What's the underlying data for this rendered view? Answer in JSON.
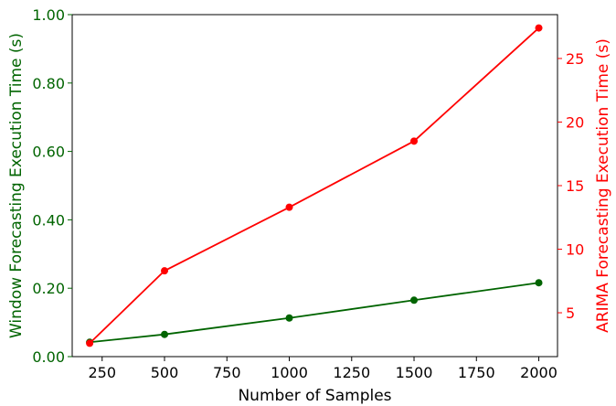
{
  "chart_data": {
    "type": "line",
    "xlabel": "Number of Samples",
    "ylabel_left": "Window Forecasting Execution Time (s)",
    "ylabel_right": "ARIMA Forecasting Execution Time (s)",
    "xlim": [
      130,
      2075
    ],
    "ylim_left": [
      0,
      1.0
    ],
    "ylim_right": [
      1.55,
      28.45
    ],
    "x_ticks": [
      250,
      500,
      750,
      1000,
      1250,
      1500,
      1750,
      2000
    ],
    "y_ticks_left": [
      "0.00",
      "0.20",
      "0.40",
      "0.60",
      "0.80",
      "1.00"
    ],
    "y_ticks_right": [
      5,
      10,
      15,
      20,
      25
    ],
    "grid": false,
    "left_axis_color": "#006400",
    "right_axis_color": "#ff0000",
    "series": [
      {
        "axis": "left",
        "color": "#006400",
        "x": [
          200,
          500,
          1000,
          1500,
          2000
        ],
        "y": [
          0.042,
          0.065,
          0.113,
          0.165,
          0.216
        ]
      },
      {
        "axis": "right",
        "color": "#ff0000",
        "x": [
          200,
          500,
          1000,
          1500,
          2000
        ],
        "y": [
          2.6,
          8.3,
          13.3,
          18.5,
          27.4
        ]
      }
    ]
  }
}
